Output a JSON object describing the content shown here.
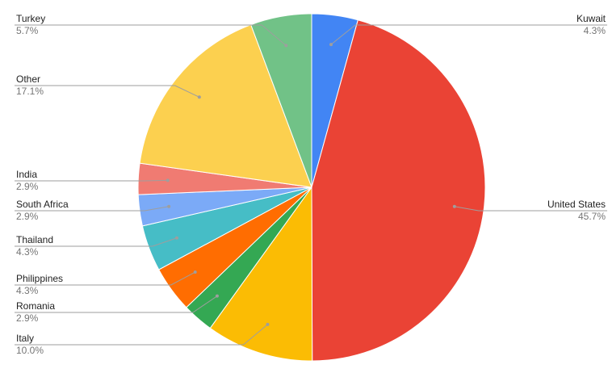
{
  "chart_data": {
    "type": "pie",
    "title": "",
    "series": [
      {
        "name": "Kuwait",
        "value": 4.3,
        "label": "4.3%",
        "color": "#4285f4"
      },
      {
        "name": "United States",
        "value": 45.7,
        "label": "45.7%",
        "color": "#ea4335"
      },
      {
        "name": "Italy",
        "value": 10.0,
        "label": "10.0%",
        "color": "#fbbc04"
      },
      {
        "name": "Romania",
        "value": 2.9,
        "label": "2.9%",
        "color": "#34a853"
      },
      {
        "name": "Philippines",
        "value": 4.3,
        "label": "4.3%",
        "color": "#ff6d01"
      },
      {
        "name": "Thailand",
        "value": 4.3,
        "label": "4.3%",
        "color": "#46bdc6"
      },
      {
        "name": "South Africa",
        "value": 2.9,
        "label": "2.9%",
        "color": "#7baaf7"
      },
      {
        "name": "India",
        "value": 2.9,
        "label": "2.9%",
        "color": "#f07b72"
      },
      {
        "name": "Other",
        "value": 17.1,
        "label": "17.1%",
        "color": "#fcd04f"
      },
      {
        "name": "Turkey",
        "value": 5.7,
        "label": "5.7%",
        "color": "#71c287"
      }
    ],
    "start": "top",
    "direction": "clockwise",
    "legend": "none",
    "labels_placement": "outside-with-leader-lines"
  }
}
